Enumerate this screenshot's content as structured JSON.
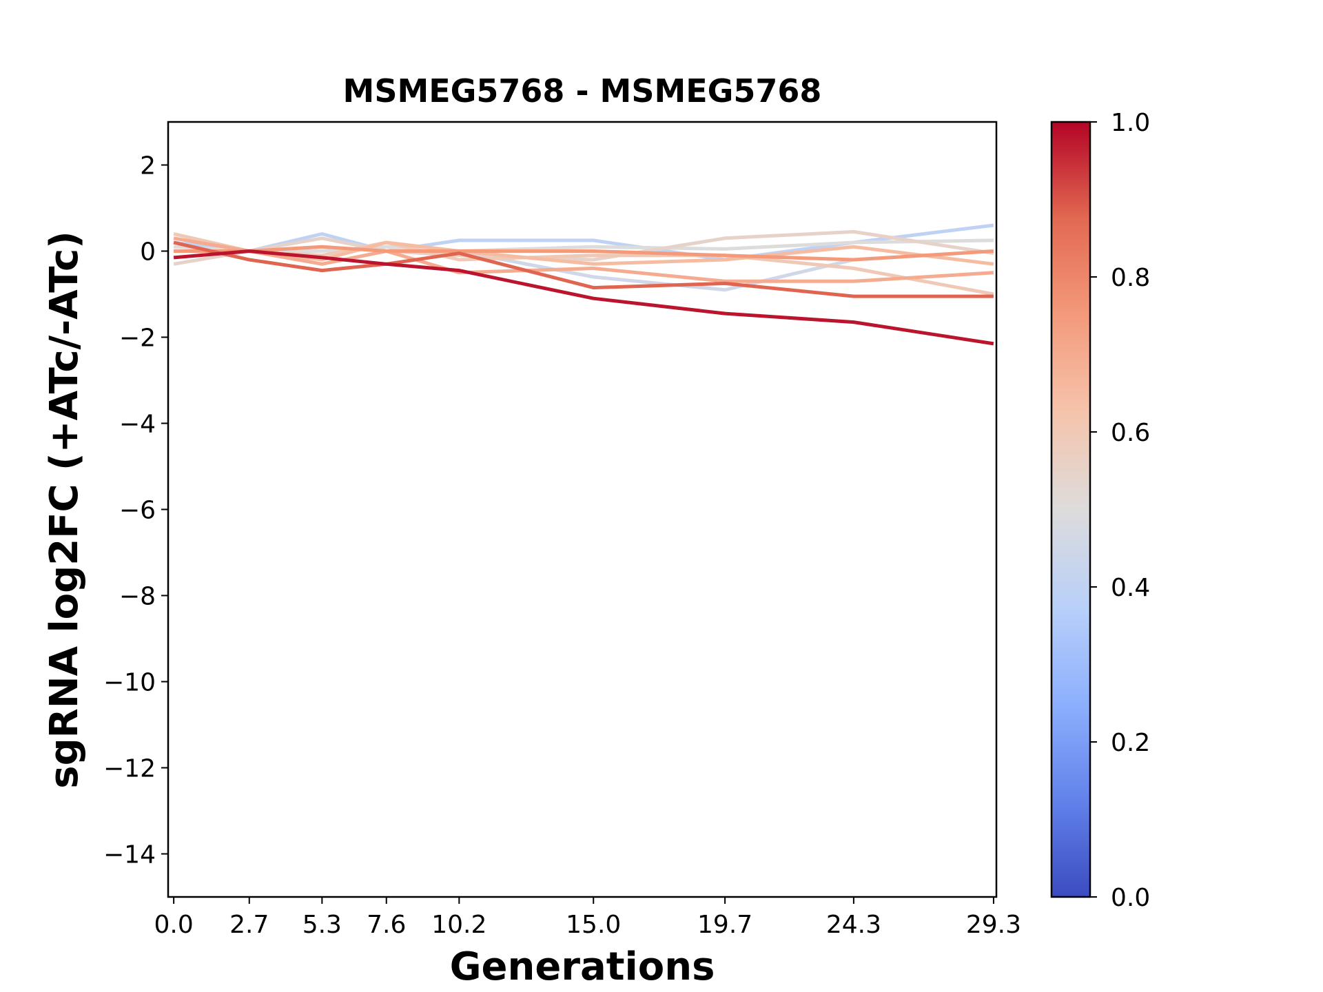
{
  "chart_data": {
    "type": "line",
    "title": "MSMEG5768 - MSMEG5768",
    "xlabel": "Generations",
    "ylabel": "sgRNA log2FC (+ATc/-ATc)",
    "x": [
      0.0,
      2.7,
      5.3,
      7.6,
      10.2,
      15.0,
      19.7,
      24.3,
      29.3
    ],
    "x_tick_labels": [
      "0.0",
      "2.7",
      "5.3",
      "7.6",
      "10.2",
      "15.0",
      "19.7",
      "24.3",
      "29.3"
    ],
    "xlim": [
      -0.2,
      29.4
    ],
    "ylim": [
      -15,
      3
    ],
    "y_ticks": [
      2,
      0,
      -2,
      -4,
      -6,
      -8,
      -10,
      -12,
      -14
    ],
    "y_tick_labels": [
      "2",
      "0",
      "−2",
      "−4",
      "−6",
      "−8",
      "−10",
      "−12",
      "−14"
    ],
    "grid": false,
    "colorbar": {
      "colormap": "coolwarm",
      "range": [
        0.0,
        1.0
      ],
      "tick_values": [
        0.0,
        0.2,
        0.4,
        0.6,
        0.8,
        1.0
      ],
      "tick_labels": [
        "0.0",
        "0.2",
        "0.4",
        "0.6",
        "0.8",
        "1.0"
      ],
      "stops": [
        "#3b4cc0",
        "#6282ea",
        "#8db0fe",
        "#b9d0f9",
        "#dddcdc",
        "#f5c4ac",
        "#f49a7b",
        "#e26952",
        "#b40426"
      ]
    },
    "series": [
      {
        "score": 0.4,
        "values": [
          0.2,
          0.0,
          0.4,
          0.0,
          0.25,
          0.25,
          -0.2,
          0.2,
          0.6
        ]
      },
      {
        "score": 0.45,
        "values": [
          0.0,
          0.0,
          0.1,
          0.0,
          0.0,
          -0.6,
          -0.9,
          -0.2,
          0.0
        ]
      },
      {
        "score": 0.5,
        "values": [
          0.1,
          0.0,
          0.0,
          0.1,
          0.0,
          0.1,
          0.05,
          0.2,
          0.25
        ]
      },
      {
        "score": 0.55,
        "values": [
          -0.3,
          0.0,
          0.3,
          0.0,
          -0.1,
          -0.2,
          0.3,
          0.45,
          -0.05
        ]
      },
      {
        "score": 0.6,
        "values": [
          0.4,
          0.0,
          -0.1,
          0.2,
          -0.2,
          -0.1,
          -0.1,
          -0.4,
          -1.0
        ]
      },
      {
        "score": 0.65,
        "values": [
          0.0,
          0.0,
          -0.2,
          0.2,
          0.0,
          -0.3,
          -0.2,
          0.1,
          -0.3
        ]
      },
      {
        "score": 0.7,
        "values": [
          0.3,
          0.0,
          -0.3,
          0.0,
          -0.5,
          -0.4,
          -0.7,
          -0.7,
          -0.5
        ]
      },
      {
        "score": 0.75,
        "values": [
          0.0,
          0.0,
          0.1,
          0.0,
          0.0,
          0.0,
          -0.1,
          -0.2,
          0.0
        ]
      },
      {
        "score": 0.88,
        "values": [
          0.2,
          -0.2,
          -0.45,
          -0.3,
          -0.05,
          -0.85,
          -0.75,
          -1.05,
          -1.05
        ]
      },
      {
        "score": 0.98,
        "values": [
          -0.15,
          0.0,
          -0.15,
          -0.3,
          -0.45,
          -1.1,
          -1.45,
          -1.65,
          -2.15
        ]
      }
    ]
  }
}
